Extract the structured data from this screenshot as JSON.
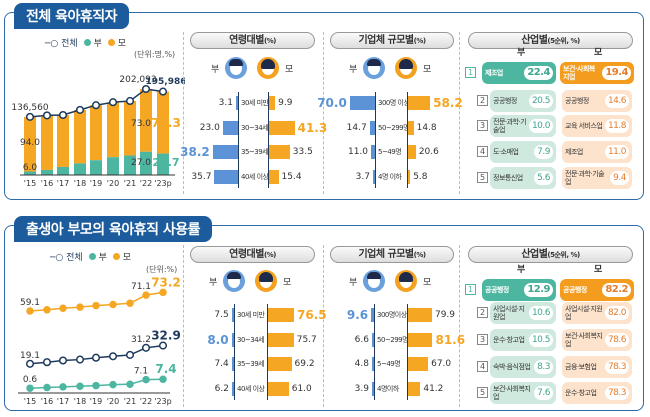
{
  "colors": {
    "father": "#4db6a0",
    "mother": "#f5a623",
    "total": "#1d3a5c",
    "father_bar": "#5b93d6",
    "navy": "#1d5c9c"
  },
  "legend": {
    "total": "전체",
    "father": "부",
    "mother": "모"
  },
  "gender": {
    "father": "부",
    "mother": "모"
  },
  "top": {
    "title": "전체 육아휴직자",
    "unit": "(단위:명,%)",
    "age_header": "연령대별",
    "age_suffix": "(%)",
    "size_header": "기업체 규모별",
    "size_suffix": "(%)",
    "ind_header": "산업별",
    "ind_suffix": "(5순위, %)",
    "age": [
      {
        "label": "30세 미만",
        "father": "3.1",
        "mother": "9.9"
      },
      {
        "label": "30~34세",
        "father": "23.0",
        "mother": "41.3"
      },
      {
        "label": "35~39세",
        "father": "38.2",
        "mother": "33.5"
      },
      {
        "label": "40세 이상",
        "father": "35.7",
        "mother": "15.4"
      }
    ],
    "size": [
      {
        "label": "300명 이상",
        "father": "70.0",
        "mother": "58.2"
      },
      {
        "label": "50~299명",
        "father": "14.7",
        "mother": "14.8"
      },
      {
        "label": "5~49명",
        "father": "11.0",
        "mother": "20.6"
      },
      {
        "label": "4명 이하",
        "father": "3.7",
        "mother": "5.8"
      }
    ],
    "industry": [
      {
        "rank": "1",
        "father": "제조업",
        "father_v": "22.4",
        "mother": "보건·사회복지업",
        "mother_v": "19.4"
      },
      {
        "rank": "2",
        "father": "공공행정",
        "father_v": "20.5",
        "mother": "공공행정",
        "mother_v": "14.6"
      },
      {
        "rank": "3",
        "father": "전문·과학·기술업",
        "father_v": "10.0",
        "mother": "교육 서비스업",
        "mother_v": "11.8"
      },
      {
        "rank": "4",
        "father": "도·소매업",
        "father_v": "7.9",
        "mother": "제조업",
        "mother_v": "11.0"
      },
      {
        "rank": "5",
        "father": "정보통신업",
        "father_v": "5.6",
        "mother": "전문·과학·기술업",
        "mother_v": "9.4"
      }
    ]
  },
  "bottom": {
    "title": "출생아 부모의 육아휴직 사용률",
    "unit": "(단위:%)",
    "age_header": "연령대별",
    "size_header": "기업체 규모별",
    "ind_header": "산업별",
    "ind_suffix": "(5순위, %)",
    "age": [
      {
        "label": "30세 미만",
        "father": "7.5",
        "mother": "76.5"
      },
      {
        "label": "30~34세",
        "father": "8.0",
        "mother": "75.7"
      },
      {
        "label": "35~39세",
        "father": "7.4",
        "mother": "69.2"
      },
      {
        "label": "40세 이상",
        "father": "6.2",
        "mother": "61.0"
      }
    ],
    "size": [
      {
        "label": "300명이상",
        "father": "9.6",
        "mother": "79.9"
      },
      {
        "label": "50~299명",
        "father": "6.6",
        "mother": "81.6"
      },
      {
        "label": "5~49명",
        "father": "4.8",
        "mother": "67.0"
      },
      {
        "label": "4명이하",
        "father": "3.9",
        "mother": "41.2"
      }
    ],
    "industry": [
      {
        "rank": "1",
        "father": "공공행정",
        "father_v": "12.9",
        "mother": "공공행정",
        "mother_v": "82.2"
      },
      {
        "rank": "2",
        "father": "사업시설·지원업",
        "father_v": "10.6",
        "mother": "사업시설·지원업",
        "mother_v": "82.0"
      },
      {
        "rank": "3",
        "father": "운수·창고업",
        "father_v": "10.5",
        "mother": "보건·사회복지업",
        "mother_v": "78.6"
      },
      {
        "rank": "4",
        "father": "숙박·음식점업",
        "father_v": "8.3",
        "mother": "금융·보험업",
        "mother_v": "78.3"
      },
      {
        "rank": "5",
        "father": "보건·사회복지업",
        "father_v": "7.6",
        "mother": "운수·창고업",
        "mother_v": "78.3"
      }
    ]
  },
  "chart_data": [
    {
      "type": "bar",
      "stacked": true,
      "categories": [
        "'15",
        "'16",
        "'17",
        "'18",
        "'19",
        "'20",
        "'21",
        "'22",
        "'23p"
      ],
      "total": {
        "name": "전체",
        "values": [
          136560,
          140000,
          141000,
          153000,
          164000,
          171000,
          174000,
          202093,
          195986
        ],
        "labels": [
          "136,560",
          "",
          "",
          "",
          "",
          "",
          "",
          "202,093",
          "195,986"
        ]
      },
      "series": [
        {
          "name": "부",
          "values": [
            6.0,
            8.5,
            13.4,
            17.8,
            21.2,
            24.5,
            26.3,
            27.0,
            25.7
          ],
          "labels": [
            "6.0",
            "",
            "",
            "",
            "",
            "",
            "",
            "27.0",
            "25.7"
          ]
        },
        {
          "name": "모",
          "values": [
            94.0,
            91.5,
            86.6,
            82.2,
            78.8,
            75.5,
            73.7,
            73.0,
            74.3
          ],
          "labels": [
            "94.0",
            "",
            "",
            "",
            "",
            "",
            "",
            "73.0",
            "74.3"
          ]
        }
      ],
      "grid": false,
      "legend": "top"
    },
    {
      "type": "line",
      "categories": [
        "'15",
        "'16",
        "'17",
        "'18",
        "'19",
        "'20",
        "'21",
        "'22",
        "'23p"
      ],
      "series": [
        {
          "name": "모",
          "values": [
            59.1,
            60.0,
            61.2,
            62.0,
            63.2,
            64.0,
            65.0,
            71.1,
            73.2
          ],
          "labels": [
            "59.1",
            "",
            "",
            "",
            "",
            "",
            "",
            "71.1",
            "73.2"
          ]
        },
        {
          "name": "전체",
          "values": [
            19.1,
            20.3,
            21.6,
            22.3,
            23.7,
            24.8,
            25.8,
            31.2,
            32.9
          ],
          "labels": [
            "19.1",
            "",
            "",
            "",
            "",
            "",
            "",
            "31.2",
            "32.9"
          ]
        },
        {
          "name": "부",
          "values": [
            0.6,
            1.1,
            1.6,
            2.1,
            2.6,
            3.3,
            3.6,
            7.1,
            7.4
          ],
          "labels": [
            "0.6",
            "",
            "",
            "",
            "",
            "",
            "",
            "7.1",
            "7.4"
          ]
        }
      ],
      "grid": false,
      "legend": "top"
    }
  ]
}
